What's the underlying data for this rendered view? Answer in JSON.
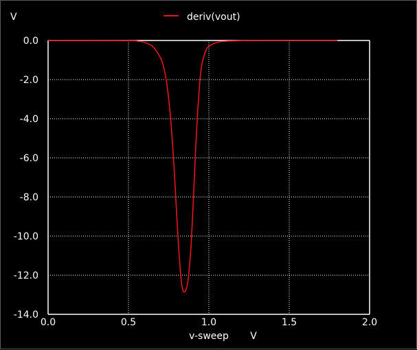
{
  "chart_data": {
    "type": "line",
    "y_unit": "V",
    "xlabel": "v-sweep",
    "x_unit": "V",
    "xlim": [
      0.0,
      2.0
    ],
    "ylim": [
      -14.0,
      0.0
    ],
    "x_ticks": [
      "0.0",
      "0.5",
      "1.0",
      "1.5",
      "2.0"
    ],
    "y_ticks": [
      "0.0",
      "-2.0",
      "-4.0",
      "-6.0",
      "-8.0",
      "-10.0",
      "-12.0",
      "-14.0"
    ],
    "grid": true,
    "legend_position": "top-center",
    "background": "#000000",
    "series": [
      {
        "name": "deriv(vout)",
        "color": "#e8141c",
        "x": [
          0.0,
          0.5,
          0.55,
          0.6,
          0.65,
          0.7,
          0.72,
          0.74,
          0.76,
          0.78,
          0.8,
          0.81,
          0.82,
          0.83,
          0.84,
          0.85,
          0.86,
          0.87,
          0.88,
          0.89,
          0.9,
          0.91,
          0.92,
          0.93,
          0.94,
          0.95,
          0.96,
          0.98,
          1.0,
          1.05,
          1.1,
          1.2,
          1.3,
          1.5,
          1.8
        ],
        "y": [
          0.0,
          -0.01,
          -0.03,
          -0.1,
          -0.3,
          -0.9,
          -1.4,
          -2.3,
          -3.8,
          -6.0,
          -8.9,
          -10.3,
          -11.5,
          -12.4,
          -12.8,
          -12.85,
          -12.7,
          -12.3,
          -11.5,
          -10.4,
          -8.8,
          -7.0,
          -5.2,
          -3.7,
          -2.5,
          -1.6,
          -1.1,
          -0.55,
          -0.3,
          -0.1,
          -0.04,
          -0.01,
          0.0,
          0.0,
          0.0
        ]
      }
    ]
  }
}
